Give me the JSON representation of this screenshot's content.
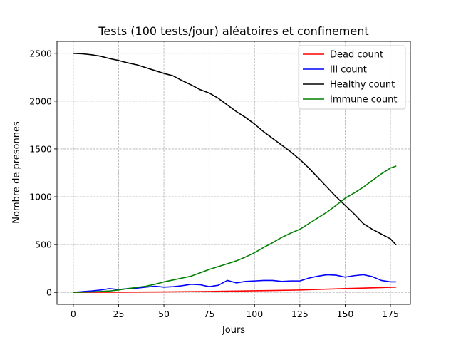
{
  "chart_data": {
    "type": "line",
    "title": "Tests (100 tests/jour) aléatoires et confinement",
    "xlabel": "Jours",
    "ylabel": "Nombre de presonnes",
    "xlim": [
      -9,
      186
    ],
    "ylim": [
      -125,
      2625
    ],
    "xticks": [
      0,
      25,
      50,
      75,
      100,
      125,
      150,
      175
    ],
    "yticks": [
      0,
      500,
      1000,
      1500,
      2000,
      2500
    ],
    "grid": true,
    "legend_position": "top-right",
    "series": [
      {
        "name": "Dead count",
        "color": "#ff0000",
        "x": [
          0,
          25,
          50,
          75,
          100,
          125,
          150,
          165,
          178
        ],
        "values": [
          0,
          2,
          5,
          10,
          17,
          25,
          40,
          48,
          55
        ]
      },
      {
        "name": "Ill count",
        "color": "#0000ff",
        "x": [
          0,
          10,
          15,
          20,
          25,
          30,
          35,
          40,
          45,
          50,
          55,
          60,
          65,
          70,
          75,
          80,
          85,
          90,
          95,
          100,
          105,
          110,
          115,
          120,
          125,
          130,
          135,
          140,
          145,
          150,
          155,
          160,
          165,
          170,
          175,
          178
        ],
        "values": [
          0,
          15,
          25,
          40,
          30,
          40,
          45,
          55,
          65,
          55,
          60,
          70,
          85,
          80,
          60,
          75,
          125,
          100,
          115,
          120,
          125,
          125,
          115,
          120,
          120,
          150,
          170,
          185,
          180,
          160,
          175,
          185,
          165,
          125,
          110,
          110
        ]
      },
      {
        "name": "Healthy count",
        "color": "#000000",
        "x": [
          0,
          5,
          10,
          15,
          20,
          25,
          30,
          35,
          40,
          45,
          50,
          55,
          60,
          65,
          70,
          75,
          80,
          85,
          90,
          95,
          100,
          105,
          110,
          115,
          120,
          125,
          130,
          135,
          140,
          145,
          150,
          155,
          160,
          165,
          170,
          175,
          178
        ],
        "values": [
          2500,
          2495,
          2485,
          2470,
          2445,
          2425,
          2400,
          2380,
          2350,
          2320,
          2290,
          2265,
          2215,
          2170,
          2120,
          2085,
          2030,
          1960,
          1890,
          1830,
          1760,
          1680,
          1610,
          1540,
          1470,
          1390,
          1300,
          1200,
          1100,
          1000,
          910,
          820,
          720,
          660,
          610,
          560,
          500
        ]
      },
      {
        "name": "Immune count",
        "color": "#008000",
        "x": [
          0,
          10,
          20,
          25,
          30,
          40,
          45,
          50,
          55,
          60,
          65,
          70,
          75,
          80,
          85,
          90,
          95,
          100,
          105,
          110,
          115,
          120,
          125,
          130,
          135,
          140,
          145,
          150,
          155,
          160,
          165,
          170,
          175,
          178
        ],
        "values": [
          0,
          5,
          15,
          25,
          40,
          65,
          85,
          110,
          130,
          150,
          170,
          205,
          240,
          270,
          300,
          330,
          370,
          415,
          470,
          520,
          575,
          620,
          660,
          720,
          780,
          840,
          910,
          985,
          1040,
          1100,
          1170,
          1240,
          1300,
          1320
        ]
      }
    ]
  }
}
